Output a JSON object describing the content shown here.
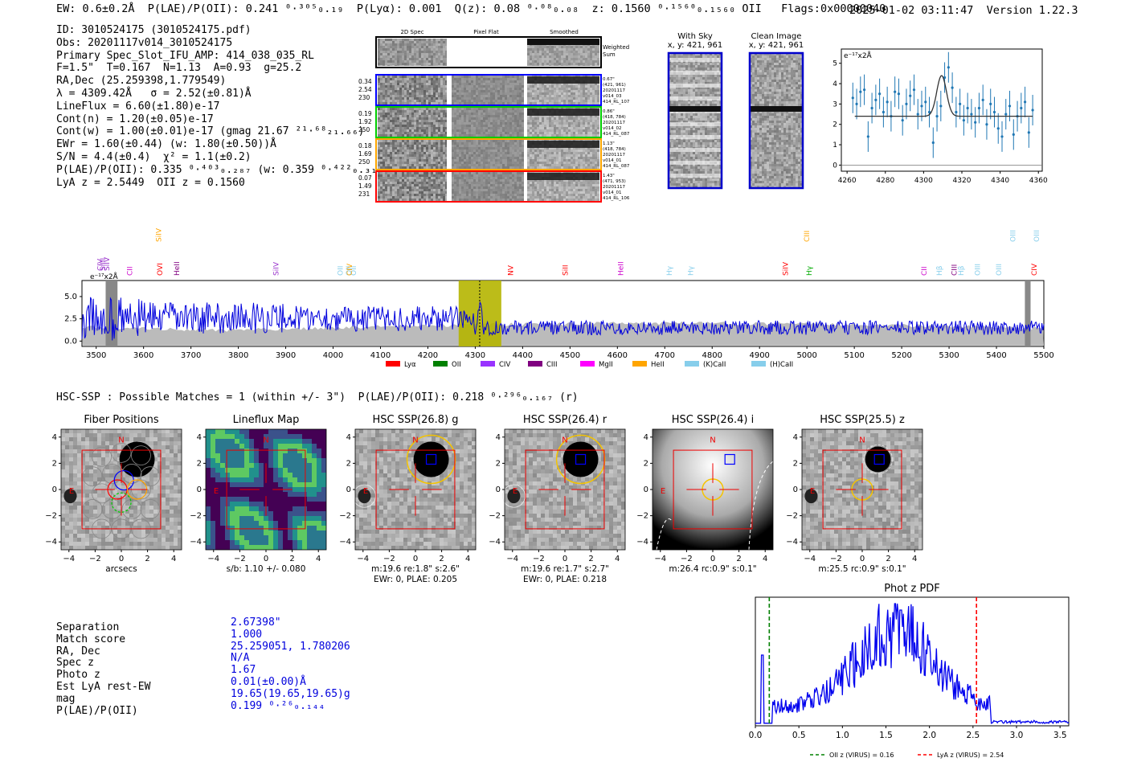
{
  "header": {
    "left": "EW: 0.6±0.2Å  P(LAE)/P(OII): 0.241 ⁰·³⁰⁵₀.₁₉  P(Lyα): 0.001  Q(z): 0.08 ⁰·⁰⁸₀.₀₈  z: 0.1560 ⁰·¹⁵⁶⁰₀.₁₅₆₀ OII   Flags:0x00000040",
    "right": "2025-01-02 03:11:47  Version 1.22.3"
  },
  "info": [
    "ID: 3010524175 (3010524175.pdf)",
    "Obs: 20201117v014_3010524175",
    "Primary Spec_Slot_IFU_AMP: 414_038_035_RL",
    "F=1.5\"  T=0.167  N=1.13  A=0.93  g=25.2",
    "RA,Dec (25.259398,1.779549)",
    "λ = 4309.42Å   σ = 2.52(±0.81)Å",
    "LineFlux = 6.60(±1.80)e-17",
    "Cont(n) = 1.20(±0.05)e-17",
    "Cont(w) = 1.00(±0.01)e-17 (gmag 21.67 ²¹·⁶⁸₂₁.₆₆)",
    "EWr = 1.60(±0.44) (w: 1.80(±0.50))Å",
    "S/N = 4.4(±0.4)  χ² = 1.1(±0.2)",
    "P(LAE)/P(OII): 0.335 ⁰·⁴⁰³₀.₂₈₇ (w: 0.359 ⁰·⁴²²₀.₃₁₆)",
    "LyA z = 2.5449  OII z = 0.1560"
  ],
  "spec2d": {
    "col_titles": [
      "2D Spec",
      "Pixel Flat",
      "Smoothed"
    ],
    "weighted_label": "Weighted Sum",
    "rows": [
      {
        "left": [
          "0.34",
          "2.54",
          "230"
        ],
        "right": [
          "0.67\"",
          "(421, 961)",
          "20201117",
          "v014_03",
          "414_RL_107"
        ],
        "color": "#0000ff"
      },
      {
        "left": [
          "0.19",
          "1.92",
          "250"
        ],
        "right": [
          "0.86\"",
          "(418, 784)",
          "20201117",
          "v014_02",
          "414_RL_087"
        ],
        "color": "#00cc00"
      },
      {
        "left": [
          "0.18",
          "1.69",
          "250"
        ],
        "right": [
          "1.13\"",
          "(418, 784)",
          "20201117",
          "v014_01",
          "414_RL_087"
        ],
        "color": "#ffa500"
      },
      {
        "left": [
          "0.07",
          "1.49",
          "231"
        ],
        "right": [
          "1.43\"",
          "(471, 953)",
          "20201117",
          "v014_01",
          "414_RL_106"
        ],
        "color": "#ff0000"
      }
    ]
  },
  "sky_panel": {
    "title": "With Sky",
    "coords": "x, y: 421, 961"
  },
  "clean_panel": {
    "title": "Clean Image",
    "coords": "x, y: 421, 961"
  },
  "fit_chart": {
    "ylabel": "e⁻¹⁷x2Å",
    "x_ticks": [
      4260,
      4280,
      4300,
      4320,
      4340,
      4360
    ],
    "y_ticks": [
      0,
      1,
      2,
      3,
      4,
      5
    ],
    "xlim": [
      4257,
      4362
    ],
    "ylim": [
      -0.3,
      5.7
    ],
    "continuum": 2.4,
    "gauss_center": 4309.4,
    "gauss_amp": 2.0,
    "gauss_sigma": 2.52,
    "x": [
      4263,
      4265,
      4267,
      4269,
      4271,
      4273,
      4275,
      4277,
      4279,
      4281,
      4283,
      4285,
      4287,
      4289,
      4291,
      4293,
      4295,
      4297,
      4299,
      4301,
      4303,
      4305,
      4307,
      4309,
      4311,
      4313,
      4315,
      4317,
      4319,
      4321,
      4323,
      4325,
      4327,
      4329,
      4331,
      4333,
      4335,
      4337,
      4339,
      4341,
      4343,
      4345,
      4347,
      4349,
      4351,
      4353,
      4355,
      4357
    ],
    "y": [
      3.3,
      3.0,
      3.6,
      3.7,
      1.4,
      2.8,
      3.2,
      3.5,
      2.6,
      3.1,
      2.4,
      3.6,
      3.5,
      2.2,
      3.0,
      3.4,
      3.7,
      2.5,
      2.9,
      3.1,
      2.6,
      1.1,
      2.4,
      2.9,
      4.3,
      4.8,
      3.8,
      2.6,
      3.0,
      2.2,
      2.8,
      2.5,
      2.1,
      2.8,
      3.2,
      2.0,
      3.0,
      2.6,
      1.8,
      1.4,
      2.5,
      2.9,
      1.5,
      2.4,
      2.8,
      3.1,
      1.6,
      2.7
    ]
  },
  "main_spectrum": {
    "ylabel": "e⁻¹⁷x2Å",
    "x_ticks": [
      3500,
      3600,
      3700,
      3800,
      3900,
      4000,
      4100,
      4200,
      4300,
      4400,
      4500,
      4600,
      4700,
      4800,
      4900,
      5000,
      5100,
      5200,
      5300,
      5400,
      5500
    ],
    "y_ticks": [
      "0.0",
      "2.5",
      "5.0"
    ],
    "xlim": [
      3470,
      5500
    ],
    "ylim": [
      -0.6,
      6.8
    ],
    "highlight": [
      4265,
      4355
    ],
    "line_center": 4309.4,
    "line_labels": [
      {
        "x": 3513,
        "label": "CIV",
        "color": "#9933cc",
        "row": 0
      },
      {
        "x": 3519,
        "label": "SiIII",
        "color": "#9933cc",
        "row": 0
      },
      {
        "x": 3528,
        "label": "SiIV",
        "color": "#9933cc",
        "row": 0
      },
      {
        "x": 3576,
        "label": "CII",
        "color": "#cc00cc",
        "row": 1
      },
      {
        "x": 3637,
        "label": "SiIV",
        "color": "#ffa500",
        "row": 2
      },
      {
        "x": 3640,
        "label": "OVI",
        "color": "#ff0000",
        "row": 1
      },
      {
        "x": 3675,
        "label": "HeII",
        "color": "#800080",
        "row": 1
      },
      {
        "x": 3885,
        "label": "SiIV",
        "color": "#9933cc",
        "row": 1
      },
      {
        "x": 4020,
        "label": "OII",
        "color": "#87ceeb",
        "row": 1
      },
      {
        "x": 4038,
        "label": "OII",
        "color": "#87ceeb",
        "row": 1
      },
      {
        "x": 4048,
        "label": "OII",
        "color": "#87ceeb",
        "row": 1
      },
      {
        "x": 4040,
        "label": "CIV",
        "color": "#ffa500",
        "row": 1
      },
      {
        "x": 4380,
        "label": "NV",
        "color": "#ff0000",
        "row": 1
      },
      {
        "x": 4495,
        "label": "SiII",
        "color": "#ff0000",
        "row": 1
      },
      {
        "x": 4612,
        "label": "HeII",
        "color": "#cc00cc",
        "row": 1
      },
      {
        "x": 4715,
        "label": "Hγ",
        "color": "#87ceeb",
        "row": 1
      },
      {
        "x": 4760,
        "label": "Hγ",
        "color": "#87ceeb",
        "row": 1
      },
      {
        "x": 4960,
        "label": "SiIV",
        "color": "#ff0000",
        "row": 1
      },
      {
        "x": 5005,
        "label": "CIII",
        "color": "#ffa500",
        "row": 2
      },
      {
        "x": 5010,
        "label": "Hγ",
        "color": "#00aa00",
        "row": 1
      },
      {
        "x": 5252,
        "label": "CII",
        "color": "#cc00cc",
        "row": 1
      },
      {
        "x": 5285,
        "label": "Hβ",
        "color": "#87ceeb",
        "row": 1
      },
      {
        "x": 5316,
        "label": "CIII",
        "color": "#800080",
        "row": 1
      },
      {
        "x": 5330,
        "label": "Hβ",
        "color": "#87ceeb",
        "row": 1
      },
      {
        "x": 5365,
        "label": "OIII",
        "color": "#87ceeb",
        "row": 1
      },
      {
        "x": 5410,
        "label": "OIII",
        "color": "#87ceeb",
        "row": 1
      },
      {
        "x": 5440,
        "label": "OIII",
        "color": "#87ceeb",
        "row": 2
      },
      {
        "x": 5490,
        "label": "OIII",
        "color": "#87ceeb",
        "row": 2
      },
      {
        "x": 5485,
        "label": "CIV",
        "color": "#ff0000",
        "row": 1
      }
    ]
  },
  "legend": [
    {
      "label": "Lyα",
      "color": "#ff0000"
    },
    {
      "label": "OII",
      "color": "#008000"
    },
    {
      "label": "CIV",
      "color": "#9933ff"
    },
    {
      "label": "CIII",
      "color": "#800080"
    },
    {
      "label": "MgII",
      "color": "#ff00ff"
    },
    {
      "label": "HeII",
      "color": "#ffa500"
    },
    {
      "label": "(K)CaII",
      "color": "#87ceeb"
    },
    {
      "label": "(H)CaII",
      "color": "#87ceeb"
    }
  ],
  "hsc_line": "HSC-SSP : Possible Matches = 1 (within +/- 3\")  P(LAE)/P(OII): 0.218 ⁰·²⁹⁶₀.₁₆₇ (r)",
  "cutouts": [
    {
      "title": "Fiber Positions",
      "caption": [
        "arcsecs"
      ],
      "kind": "fiber"
    },
    {
      "title": "Lineflux Map",
      "caption": [
        "s/b: 1.10 +/- 0.080"
      ],
      "kind": "lineflux"
    },
    {
      "title": "HSC SSP(26.8) g",
      "caption": [
        "m:19.6  re:1.8\"  s:2.6\"",
        "EWr: 0, PLAE: 0.205"
      ],
      "kind": "hsc"
    },
    {
      "title": "HSC SSP(26.4) r",
      "caption": [
        "m:19.6  re:1.7\"  s:2.7\"",
        "EWr: 0, PLAE: 0.218"
      ],
      "kind": "hsc"
    },
    {
      "title": "HSC SSP(26.4) i",
      "caption": [
        "m:26.4 rc:0.9\"  s:0.1\""
      ],
      "kind": "hsci"
    },
    {
      "title": "HSC SSP(25.5) z",
      "caption": [
        "m:25.5 rc:0.9\"  s:0.1\""
      ],
      "kind": "hscz"
    }
  ],
  "cut_ticks": [
    "−4",
    "−2",
    "0",
    "2",
    "4"
  ],
  "compass": {
    "n": "N",
    "e": "E"
  },
  "match": {
    "labels": [
      "Separation",
      "Match score",
      "RA, Dec",
      "Spec z",
      "Photo z",
      "Est LyA rest-EW",
      "mag",
      "P(LAE)/P(OII)"
    ],
    "values": [
      "2.67398\"",
      "1.000",
      "25.259051, 1.780206",
      "N/A",
      "1.67",
      "0.01(±0.00)Å",
      "19.65(19.65,19.65)g",
      "0.199 ⁰·²⁶₀.₁₄₄"
    ]
  },
  "photz": {
    "title": "Phot z PDF",
    "x_ticks": [
      "0.0",
      "0.5",
      "1.0",
      "1.5",
      "2.0",
      "2.5",
      "3.0",
      "3.5"
    ],
    "xlim": [
      0,
      3.6
    ],
    "oii_z": 0.16,
    "lya_z": 2.54,
    "legend_oii": "OII z (VIRUS) = 0.16",
    "legend_lya": "LyA z (VIRUS) = 2.54",
    "oii_color": "#008000",
    "lya_color": "#ff0000"
  }
}
